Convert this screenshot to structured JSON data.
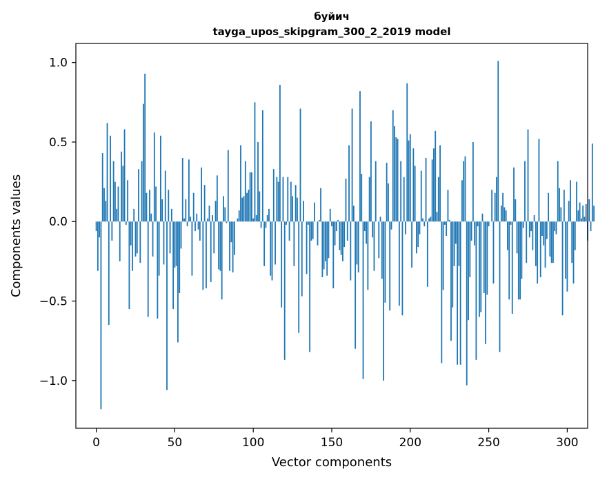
{
  "chart_data": {
    "type": "bar",
    "title": "буйич",
    "subtitle": "tayga_upos_skipgram_300_2_2019 model",
    "xlabel": "Vector components",
    "ylabel": "Components values",
    "xlim": [
      -13,
      313
    ],
    "ylim": [
      -1.3,
      1.12
    ],
    "xticks": [
      0,
      50,
      100,
      150,
      200,
      250,
      300
    ],
    "xtick_labels": [
      "0",
      "50",
      "100",
      "150",
      "200",
      "250",
      "300"
    ],
    "yticks": [
      1.0,
      0.5,
      0.0,
      -0.5,
      -1.0
    ],
    "ytick_labels": [
      "1.0",
      "0.5",
      "0.0",
      "−0.5",
      "−1.0"
    ],
    "bar_color": "#1f77b4",
    "grid": false,
    "values": [
      -0.06,
      -0.31,
      -0.1,
      -1.18,
      0.43,
      0.21,
      0.13,
      0.62,
      -0.65,
      0.54,
      -0.12,
      0.38,
      0.25,
      0.08,
      0.22,
      -0.25,
      0.44,
      0.35,
      0.58,
      -0.02,
      0.26,
      -0.55,
      -0.15,
      -0.31,
      0.08,
      -0.22,
      -0.2,
      0.33,
      -0.26,
      0.38,
      0.74,
      0.93,
      0.18,
      -0.6,
      0.2,
      0.05,
      -0.22,
      0.56,
      0.22,
      -0.61,
      -0.34,
      0.54,
      0.14,
      -0.27,
      0.32,
      -1.06,
      0.2,
      -0.2,
      0.08,
      -0.55,
      -0.29,
      -0.28,
      -0.76,
      -0.45,
      -0.17,
      0.4,
      0.02,
      0.14,
      -0.03,
      0.39,
      0.03,
      -0.34,
      0.18,
      -0.06,
      0.05,
      -0.05,
      -0.12,
      0.34,
      -0.43,
      0.23,
      -0.42,
      0.02,
      0.1,
      -0.38,
      0.04,
      -0.2,
      0.13,
      0.29,
      -0.3,
      -0.31,
      -0.49,
      0.16,
      0.09,
      -0.01,
      0.45,
      -0.31,
      -0.13,
      -0.32,
      -0.21,
      0.0,
      0.02,
      0.07,
      0.48,
      0.15,
      0.16,
      0.38,
      0.18,
      0.2,
      0.31,
      0.31,
      0.02,
      0.75,
      0.04,
      0.5,
      0.19,
      -0.04,
      0.7,
      -0.28,
      -0.04,
      0.04,
      0.08,
      -0.34,
      -0.37,
      0.33,
      -0.27,
      0.28,
      0.25,
      0.86,
      -0.54,
      0.28,
      -0.87,
      -0.02,
      0.28,
      -0.12,
      0.25,
      0.16,
      -0.28,
      0.23,
      0.15,
      -0.7,
      0.71,
      -0.47,
      0.13,
      0.0,
      -0.33,
      -0.02,
      -0.82,
      -0.12,
      -0.11,
      0.12,
      0.0,
      -0.15,
      0.01,
      0.21,
      -0.35,
      -0.3,
      -0.25,
      -0.34,
      -0.23,
      0.08,
      -0.03,
      -0.42,
      -0.15,
      -0.06,
      0.01,
      -0.18,
      -0.21,
      -0.25,
      -0.16,
      0.27,
      -0.12,
      0.48,
      -0.37,
      0.71,
      0.1,
      -0.8,
      -0.27,
      -0.32,
      0.82,
      0.3,
      -0.99,
      -0.06,
      -0.14,
      -0.43,
      0.28,
      0.63,
      -0.1,
      -0.31,
      0.38,
      0.0,
      -0.23,
      0.03,
      -0.36,
      -1.0,
      -0.51,
      0.37,
      0.24,
      -0.56,
      -0.05,
      0.7,
      0.6,
      0.53,
      0.52,
      -0.53,
      0.38,
      -0.59,
      0.28,
      -0.08,
      0.87,
      0.51,
      0.55,
      -0.29,
      0.46,
      0.35,
      -0.2,
      -0.16,
      -0.08,
      0.32,
      0.02,
      -0.03,
      0.4,
      -0.41,
      0.02,
      0.03,
      0.39,
      0.46,
      0.57,
      0.06,
      0.28,
      0.48,
      -0.89,
      -0.43,
      -0.02,
      -0.09,
      0.2,
      0.01,
      -0.75,
      -0.54,
      -0.28,
      -0.14,
      -0.9,
      -0.28,
      -0.9,
      0.26,
      0.38,
      0.41,
      -1.03,
      -0.62,
      -0.35,
      -0.12,
      0.5,
      -0.15,
      -0.87,
      -0.03,
      -0.6,
      -0.57,
      0.05,
      -0.45,
      -0.77,
      -0.46,
      -0.03,
      0.0,
      0.2,
      -0.39,
      0.18,
      0.28,
      1.01,
      -0.82,
      0.1,
      0.18,
      0.09,
      0.07,
      -0.18,
      -0.49,
      -0.02,
      -0.58,
      0.34,
      0.14,
      -0.2,
      -0.49,
      -0.49,
      -0.36,
      -0.04,
      0.38,
      -0.26,
      0.58,
      -0.1,
      -0.06,
      -0.18,
      0.04,
      -0.28,
      -0.39,
      0.52,
      -0.35,
      -0.09,
      -0.15,
      -0.29,
      -0.11,
      0.18,
      -0.22,
      -0.26,
      -0.26,
      -0.06,
      -0.08,
      0.38,
      0.21,
      0.09,
      -0.59,
      0.2,
      -0.36,
      -0.44,
      0.13,
      0.26,
      -0.26,
      -0.39,
      -0.18,
      0.25,
      0.07,
      0.12,
      0.02,
      0.1,
      0.03,
      0.11,
      -0.12,
      0.14,
      -0.06,
      0.49,
      0.1
    ]
  }
}
